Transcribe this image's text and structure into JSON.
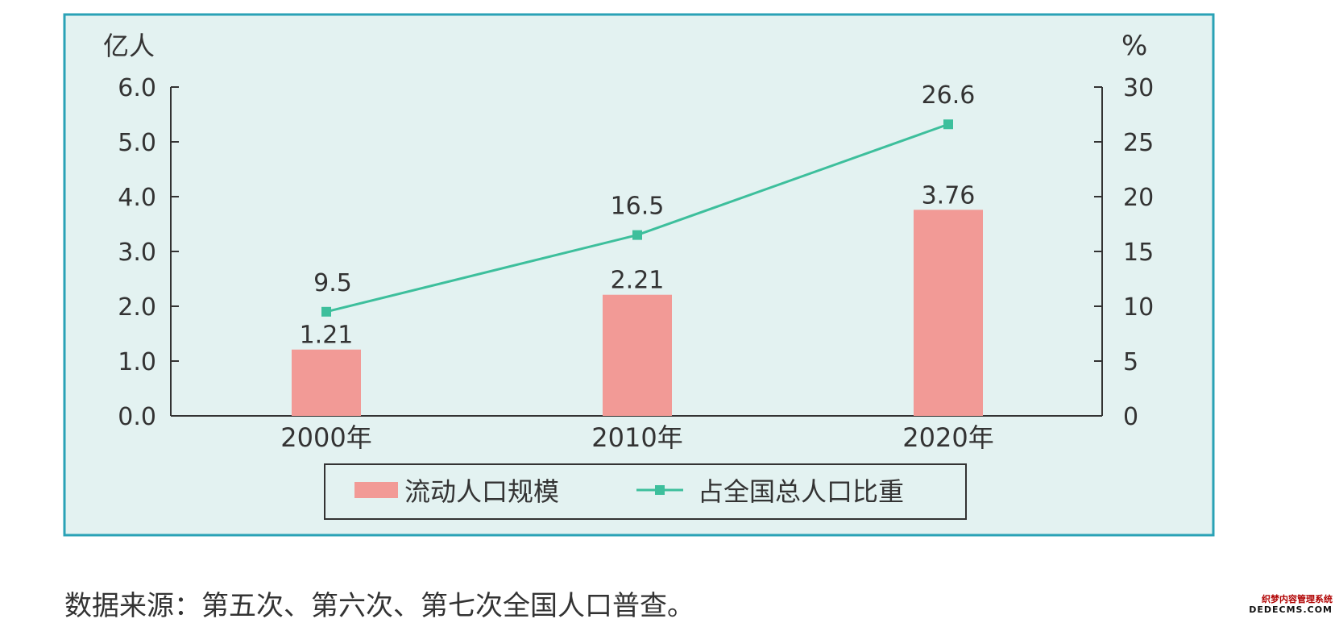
{
  "colors": {
    "panel_bg": "#e3f2f1",
    "panel_border": "#2aa2b6",
    "bar": "#f29a96",
    "line": "#3dbf9c",
    "axis": "#333333",
    "text": "#333333"
  },
  "chart_data": {
    "type": "bar",
    "categories": [
      "2000年",
      "2010年",
      "2020年"
    ],
    "series": [
      {
        "name": "流动人口规模",
        "type": "bar",
        "axis": "left",
        "values": [
          1.21,
          2.21,
          3.76
        ],
        "labels": [
          "1.21",
          "2.21",
          "3.76"
        ]
      },
      {
        "name": "占全国总人口比重",
        "type": "line",
        "axis": "right",
        "values": [
          9.5,
          16.5,
          26.6
        ],
        "labels": [
          "9.5",
          "16.5",
          "26.6"
        ]
      }
    ],
    "left_axis": {
      "unit": "亿人",
      "ylim": [
        0,
        6
      ],
      "ticks": [
        "0.0",
        "1.0",
        "2.0",
        "3.0",
        "4.0",
        "5.0",
        "6.0"
      ]
    },
    "right_axis": {
      "unit": "%",
      "ylim": [
        0,
        30
      ],
      "ticks": [
        "0",
        "5",
        "10",
        "15",
        "20",
        "25",
        "30"
      ]
    },
    "legend": {
      "placement": "bottom-center"
    },
    "grid": false
  },
  "footer": {
    "source": "数据来源：第五次、第六次、第七次全国人口普查。"
  },
  "watermark": {
    "line1": "织梦内容管理系统",
    "line2": "DEDECMS.COM"
  }
}
